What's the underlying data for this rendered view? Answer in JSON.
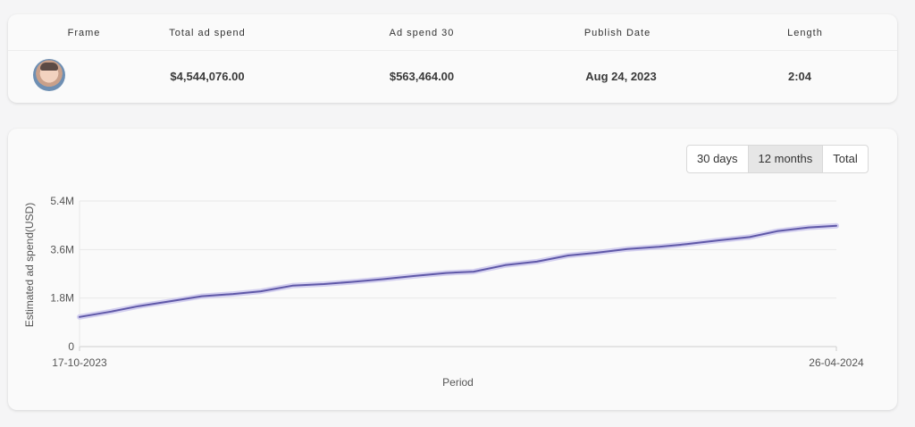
{
  "table": {
    "headers": [
      "Frame",
      "Total ad spend",
      "Ad spend 30",
      "Publish Date",
      "Length"
    ],
    "row": {
      "total_ad_spend": "$4,544,076.00",
      "ad_spend_30": "$563,464.00",
      "publish_date": "Aug 24, 2023",
      "length": "2:04"
    }
  },
  "range_buttons": {
    "options": [
      "30 days",
      "12 months",
      "Total"
    ],
    "selected": "12 months"
  },
  "colors": {
    "line": "#5f58a8",
    "line_glow": "#c9c4ec",
    "grid": "#e8e8e8",
    "axis": "#cfcfcf"
  },
  "chart_data": {
    "type": "line",
    "xlabel": "Period",
    "ylabel": "Estimated ad spend(USD)",
    "x_tick_labels": [
      "17-10-2023",
      "26-04-2024"
    ],
    "y_tick_labels": [
      "0",
      "1.8M",
      "3.6M",
      "5.4M"
    ],
    "ylim": [
      0,
      5400000
    ],
    "grid": true,
    "series": [
      {
        "x": [
          "2023-10-17",
          "2023-10-25",
          "2023-11-01",
          "2023-11-09",
          "2023-11-17",
          "2023-11-25",
          "2023-12-02",
          "2023-12-10",
          "2023-12-18",
          "2023-12-25",
          "2024-01-02",
          "2024-01-10",
          "2024-01-18",
          "2024-01-25",
          "2024-02-02",
          "2024-02-10",
          "2024-02-18",
          "2024-02-25",
          "2024-03-04",
          "2024-03-12",
          "2024-03-19",
          "2024-03-27",
          "2024-04-04",
          "2024-04-11",
          "2024-04-19",
          "2024-04-26"
        ],
        "values": [
          1100000,
          1300000,
          1500000,
          1680000,
          1870000,
          1950000,
          2050000,
          2260000,
          2320000,
          2400000,
          2500000,
          2620000,
          2730000,
          2780000,
          3020000,
          3150000,
          3380000,
          3480000,
          3620000,
          3700000,
          3800000,
          3940000,
          4060000,
          4280000,
          4420000,
          4480000
        ]
      }
    ]
  }
}
